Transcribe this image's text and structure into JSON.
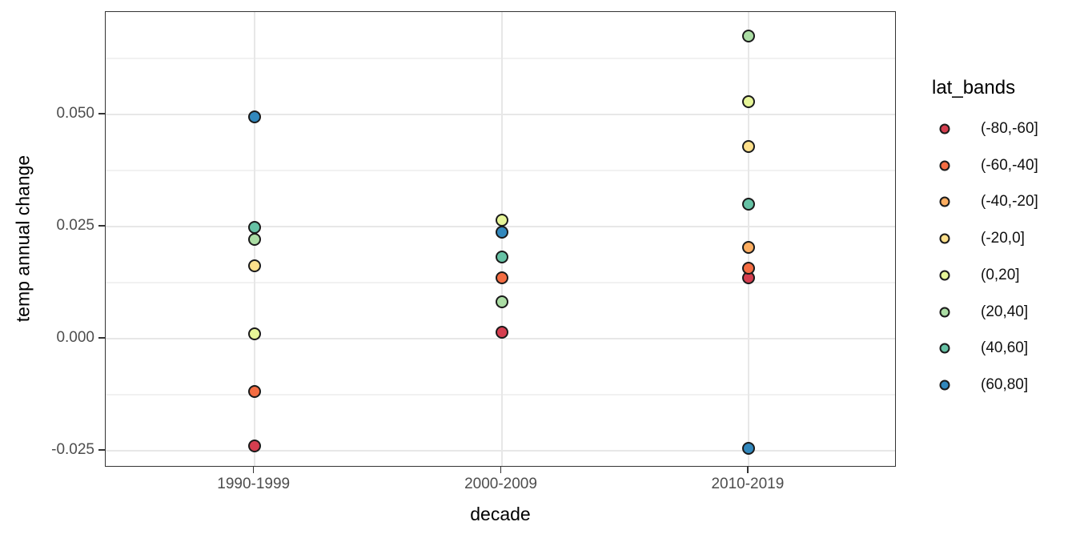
{
  "chart_data": {
    "type": "scatter",
    "title": "",
    "xlabel": "decade",
    "ylabel": "temp annual change",
    "categories": [
      "1990-1999",
      "2000-2009",
      "2010-2019"
    ],
    "y_axis": {
      "ticks": [
        -0.025,
        0,
        0.025,
        0.05
      ],
      "tick_labels": [
        "-0.025",
        "0.000",
        "0.025",
        "0.050"
      ],
      "minor_ticks": [
        -0.0125,
        0.0125,
        0.0375,
        0.0625
      ],
      "range": [
        -0.0288,
        0.0729
      ]
    },
    "grid": {
      "major_color": "#e7e7e7",
      "minor_color": "#f1f1f1",
      "panel_bg": "#ffffff",
      "panel_border": "#333333"
    },
    "legend": {
      "title": "lat_bands",
      "position": "right",
      "entries": [
        {
          "label": "(-80,-60]",
          "color": "#D53E4F"
        },
        {
          "label": "(-60,-40]",
          "color": "#F46D43"
        },
        {
          "label": "(-40,-20]",
          "color": "#FDAE61"
        },
        {
          "label": "(-20,0]",
          "color": "#FEE08B"
        },
        {
          "label": "(0,20]",
          "color": "#E6F598"
        },
        {
          "label": "(20,40]",
          "color": "#ABDDA4"
        },
        {
          "label": "(40,60]",
          "color": "#66C2A5"
        },
        {
          "label": "(60,80]",
          "color": "#3288BD"
        }
      ]
    },
    "series": [
      {
        "name": "(-80,-60]",
        "color": "#D53E4F",
        "points": [
          {
            "x": "1990-1999",
            "y": -0.024
          },
          {
            "x": "2000-2009",
            "y": 0.0015
          },
          {
            "x": "2010-2019",
            "y": 0.0136
          }
        ]
      },
      {
        "name": "(-60,-40]",
        "color": "#F46D43",
        "points": [
          {
            "x": "1990-1999",
            "y": -0.0118
          },
          {
            "x": "2000-2009",
            "y": 0.0135
          },
          {
            "x": "2010-2019",
            "y": 0.0157
          }
        ]
      },
      {
        "name": "(-40,-20]",
        "color": "#FDAE61",
        "points": [
          {
            "x": "2010-2019",
            "y": 0.0204
          }
        ]
      },
      {
        "name": "(-20,0]",
        "color": "#FEE08B",
        "points": [
          {
            "x": "1990-1999",
            "y": 0.0163
          },
          {
            "x": "2010-2019",
            "y": 0.0429
          }
        ]
      },
      {
        "name": "(0,20]",
        "color": "#E6F598",
        "points": [
          {
            "x": "1990-1999",
            "y": 0.001
          },
          {
            "x": "2000-2009",
            "y": 0.0264
          },
          {
            "x": "2010-2019",
            "y": 0.0528
          }
        ]
      },
      {
        "name": "(20,40]",
        "color": "#ABDDA4",
        "points": [
          {
            "x": "1990-1999",
            "y": 0.0222
          },
          {
            "x": "2000-2009",
            "y": 0.0083
          },
          {
            "x": "2010-2019",
            "y": 0.0675
          }
        ]
      },
      {
        "name": "(40,60]",
        "color": "#66C2A5",
        "points": [
          {
            "x": "1990-1999",
            "y": 0.0249
          },
          {
            "x": "2000-2009",
            "y": 0.0183
          },
          {
            "x": "2010-2019",
            "y": 0.03
          }
        ]
      },
      {
        "name": "(60,80]",
        "color": "#3288BD",
        "points": [
          {
            "x": "1990-1999",
            "y": 0.0494
          },
          {
            "x": "2000-2009",
            "y": 0.0237
          },
          {
            "x": "2010-2019",
            "y": -0.0245
          }
        ]
      }
    ],
    "point_style": {
      "outline": "#1a1a1a",
      "shape": "circle"
    }
  }
}
